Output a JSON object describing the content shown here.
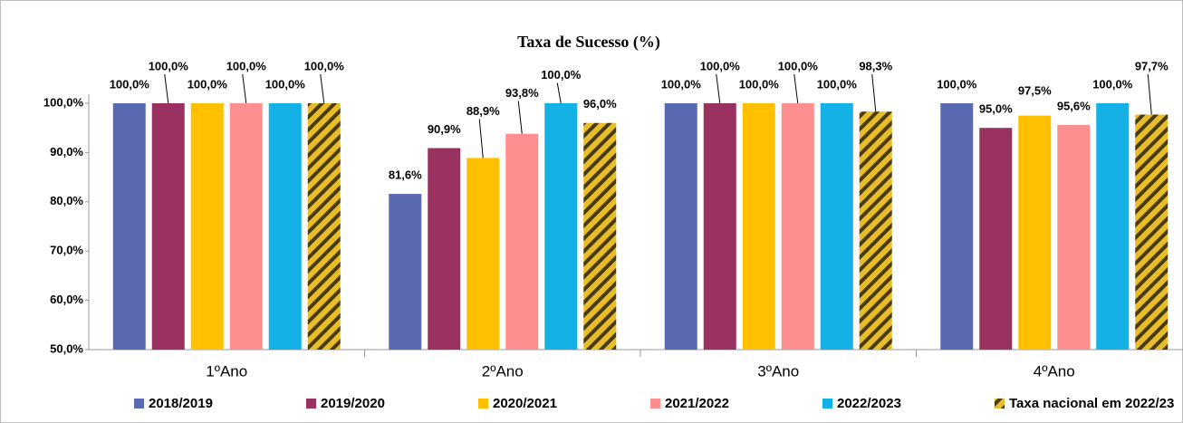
{
  "chart_data": {
    "type": "bar",
    "title": "Taxa de Sucesso (%)",
    "categories": [
      "1ºAno",
      "2ºAno",
      "3ºAno",
      "4ºAno"
    ],
    "series": [
      {
        "name": "2018/2019",
        "color": "#5b68b2",
        "values": [
          100,
          81.6,
          100,
          100
        ],
        "value_labels": [
          "100,0%",
          "81,6%",
          "100,0%",
          "100,0%"
        ]
      },
      {
        "name": "2019/2020",
        "color": "#9a3261",
        "values": [
          100,
          90.9,
          100,
          95.0
        ],
        "value_labels": [
          "100,0%",
          "90,9%",
          "100,0%",
          "95,0%"
        ]
      },
      {
        "name": "2020/2021",
        "color": "#ffc000",
        "values": [
          100,
          88.9,
          100,
          97.5
        ],
        "value_labels": [
          "100,0%",
          "88,9%",
          "100,0%",
          "97,5%"
        ]
      },
      {
        "name": "2021/2022",
        "color": "#ff8f8f",
        "values": [
          100,
          93.8,
          100,
          95.6
        ],
        "value_labels": [
          "100,0%",
          "93,8%",
          "100,0%",
          "95,6%"
        ]
      },
      {
        "name": "2022/2023",
        "color": "#13b1e6",
        "values": [
          100,
          100,
          100,
          100
        ],
        "value_labels": [
          "100,0%",
          "100,0%",
          "100,0%",
          "100,0%"
        ]
      },
      {
        "name": "Taxa nacional em 2022/23",
        "color": "#c9a21b",
        "hatch": true,
        "values": [
          100,
          96.0,
          98.3,
          97.7
        ],
        "value_labels": [
          "100,0%",
          "96,0%",
          "98,3%",
          "97,7%"
        ]
      }
    ],
    "ylim": [
      50,
      100
    ],
    "yticks": [
      {
        "value": 50,
        "label": "50,0%"
      },
      {
        "value": 60,
        "label": "60,0%"
      },
      {
        "value": 70,
        "label": "70,0%"
      },
      {
        "value": 80,
        "label": "80,0%"
      },
      {
        "value": 90,
        "label": "90,0%"
      },
      {
        "value": 100,
        "label": "100,0%"
      }
    ],
    "legend": "bottom"
  }
}
